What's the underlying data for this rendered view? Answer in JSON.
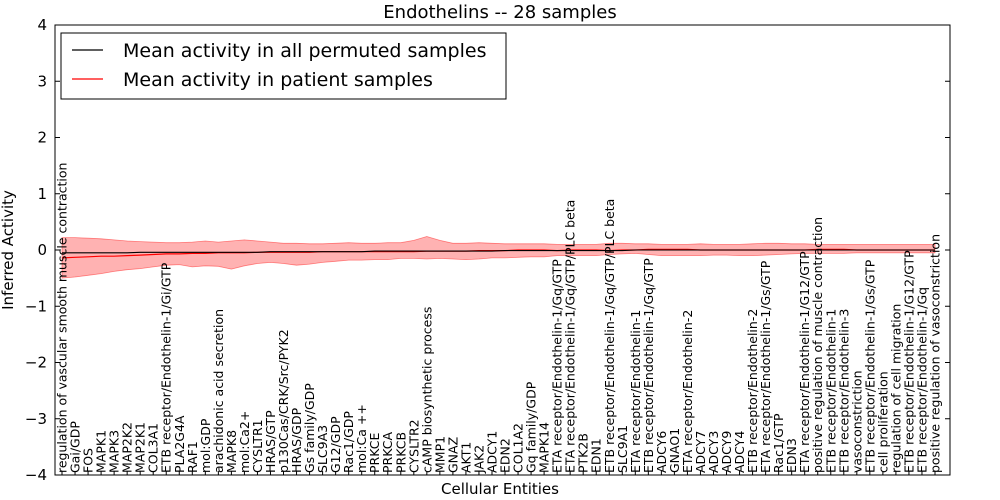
{
  "chart_data": {
    "type": "line",
    "title": "Endothelins -- 28 samples",
    "xlabel": "Cellular Entities",
    "ylabel": "Inferred Activity",
    "ylim": [
      -4,
      4
    ],
    "yticks": [
      -4,
      -3,
      -2,
      -1,
      0,
      1,
      2,
      3,
      4
    ],
    "grid": false,
    "legend_position": "top-left",
    "legend": [
      {
        "label": "Mean activity in all permuted samples",
        "color": "#000000"
      },
      {
        "label": "Mean activity in patient samples",
        "color": "#ff0000"
      }
    ],
    "categories": [
      "regulation of vascular smooth muscle contraction",
      "Gai/GDP",
      "FOS",
      "MAPK1",
      "MAPK3",
      "MAP2K2",
      "MAP2K1",
      "COL3A1",
      "ETB receptor/Endothelin-1/Gi/GTP",
      "PLA2G4A",
      "RAF1",
      "mol:GDP",
      "arachidonic acid secretion",
      "MAPK8",
      "mol:Ca2+",
      "CYSLTR1",
      "HRAS/GTP",
      "p130Cas/CRK/Src/PYK2",
      "HRAS/GDP",
      "Gs family/GDP",
      "SLC9A3",
      "G12/GDP",
      "Rac1/GDP",
      "mol:Ca ++",
      "PRKCE",
      "PRKCA",
      "PRKCB",
      "CYSLTR2",
      "cAMP biosynthetic process",
      "MMP1",
      "GNAZ",
      "AKT1",
      "JAK2",
      "ADCY1",
      "EDN2",
      "COL1A2",
      "Gq family/GDP",
      "MAPK14",
      "ETA receptor/Endothelin-1/Gq/GTP",
      "ETA receptor/Endothelin-1/Gq/GTP/PLC beta",
      "PTK2B",
      "EDN1",
      "ETB receptor/Endothelin-1/Gq/GTP/PLC beta",
      "SLC9A1",
      "ETA receptor/Endothelin-1",
      "ETB receptor/Endothelin-1/Gq/GTP",
      "ADCY6",
      "GNAO1",
      "ETA receptor/Endothelin-2",
      "ADCY7",
      "ADCY3",
      "ADCY9",
      "ADCY4",
      "ETB receptor/Endothelin-2",
      "ETA receptor/Endothelin-1/Gs/GTP",
      "Rac1/GTP",
      "EDN3",
      "ETA receptor/Endothelin-1/G12/GTP",
      "positive regulation of muscle contraction",
      "ETB receptor/Endothelin-1",
      "ETB receptor/Endothelin-3",
      "vasoconstriction",
      "ETB receptor/Endothelin-1/Gs/GTP",
      "cell proliferation",
      "regulation of cell migration",
      "ETB receptor/Endothelin-1/G12/GTP",
      "ETB receptor/Endothelin-1/Gq",
      "positive regulation of vasoconstriction"
    ],
    "series": [
      {
        "name": "Mean activity in all permuted samples",
        "color": "#000000",
        "values": [
          -0.05,
          -0.05,
          -0.05,
          -0.05,
          -0.05,
          -0.05,
          -0.04,
          -0.04,
          -0.04,
          -0.04,
          -0.04,
          -0.04,
          -0.04,
          -0.04,
          -0.04,
          -0.04,
          -0.03,
          -0.03,
          -0.03,
          -0.03,
          -0.03,
          -0.03,
          -0.03,
          -0.03,
          -0.02,
          -0.02,
          -0.02,
          -0.02,
          -0.02,
          -0.02,
          -0.02,
          -0.02,
          -0.02,
          -0.02,
          -0.01,
          -0.01,
          -0.01,
          -0.01,
          -0.01,
          -0.01,
          -0.01,
          -0.01,
          -0.01,
          -0.01,
          0.0,
          0.0,
          0.0,
          0.0,
          0.0,
          0.0,
          0.0,
          0.0,
          0.0,
          0.0,
          0.0,
          0.0,
          0.0,
          0.0,
          0.0,
          0.0,
          0.0,
          0.0,
          0.0,
          0.0,
          0.0,
          0.0,
          0.0,
          0.0
        ]
      },
      {
        "name": "Mean activity in patient samples",
        "color": "#ff0000",
        "values": [
          -0.14,
          -0.13,
          -0.12,
          -0.11,
          -0.11,
          -0.1,
          -0.09,
          -0.08,
          -0.07,
          -0.07,
          -0.06,
          -0.06,
          -0.05,
          -0.05,
          -0.05,
          -0.04,
          -0.04,
          -0.04,
          -0.04,
          -0.04,
          -0.03,
          -0.03,
          -0.03,
          -0.03,
          -0.03,
          -0.03,
          -0.03,
          -0.03,
          -0.02,
          -0.02,
          -0.02,
          -0.02,
          -0.01,
          -0.01,
          -0.01,
          0.0,
          0.0,
          0.0,
          -0.01,
          0.0,
          0.0,
          0.0,
          -0.01,
          0.0,
          0.0,
          0.01,
          0.01,
          0.01,
          0.01,
          0.0,
          0.0,
          0.0,
          0.0,
          0.0,
          0.0,
          0.0,
          0.0,
          0.0,
          0.01,
          0.01,
          0.01,
          0.0,
          0.0,
          0.0,
          0.0,
          0.0,
          0.0,
          0.0
        ]
      }
    ],
    "band": {
      "name": "patient samples spread",
      "color": "#ff0000",
      "upper": [
        0.22,
        0.22,
        0.21,
        0.2,
        0.18,
        0.16,
        0.15,
        0.14,
        0.13,
        0.13,
        0.14,
        0.16,
        0.14,
        0.16,
        0.18,
        0.16,
        0.14,
        0.12,
        0.12,
        0.11,
        0.11,
        0.12,
        0.13,
        0.12,
        0.12,
        0.13,
        0.13,
        0.17,
        0.24,
        0.17,
        0.12,
        0.12,
        0.13,
        0.12,
        0.11,
        0.11,
        0.11,
        0.11,
        0.1,
        0.1,
        0.1,
        0.1,
        0.12,
        0.12,
        0.11,
        0.11,
        0.1,
        0.1,
        0.1,
        0.11,
        0.1,
        0.1,
        0.1,
        0.11,
        0.12,
        0.12,
        0.11,
        0.11,
        0.1,
        0.1,
        0.1,
        0.1,
        0.1,
        0.1,
        0.1,
        0.1,
        0.1,
        0.1
      ],
      "lower": [
        -0.5,
        -0.48,
        -0.45,
        -0.42,
        -0.38,
        -0.35,
        -0.33,
        -0.3,
        -0.27,
        -0.26,
        -0.3,
        -0.28,
        -0.29,
        -0.34,
        -0.28,
        -0.24,
        -0.22,
        -0.24,
        -0.27,
        -0.25,
        -0.22,
        -0.2,
        -0.18,
        -0.18,
        -0.17,
        -0.17,
        -0.15,
        -0.15,
        -0.16,
        -0.15,
        -0.16,
        -0.17,
        -0.16,
        -0.14,
        -0.14,
        -0.13,
        -0.12,
        -0.12,
        -0.1,
        -0.1,
        -0.1,
        -0.1,
        -0.08,
        -0.07,
        -0.06,
        -0.08,
        -0.1,
        -0.1,
        -0.1,
        -0.1,
        -0.09,
        -0.09,
        -0.1,
        -0.1,
        -0.09,
        -0.08,
        -0.07,
        -0.06,
        -0.06,
        -0.06,
        -0.06,
        -0.05,
        -0.05,
        -0.05,
        -0.05,
        -0.05,
        -0.05,
        -0.05
      ]
    }
  }
}
